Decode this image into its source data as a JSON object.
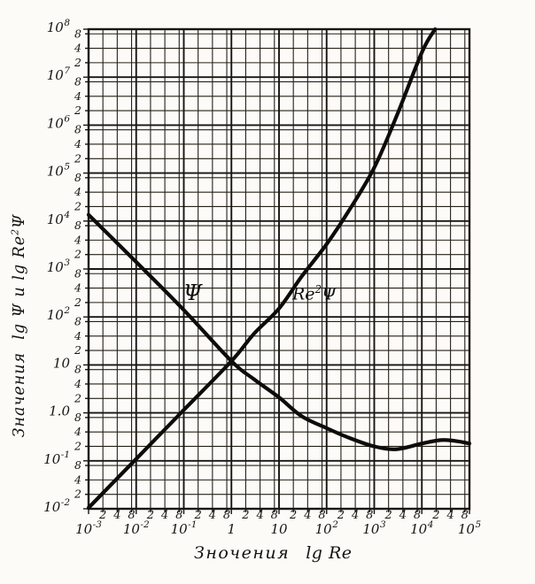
{
  "chart_data": {
    "type": "line",
    "scale": "log-log",
    "title": "",
    "x_title": {
      "word": "Зночения",
      "formula": "lg Re"
    },
    "y_title": {
      "word": "Значения",
      "f1": "lg Ψ и lg Re",
      "sup": "2",
      "f2": "Ψ"
    },
    "x_range": [
      0.001,
      100000
    ],
    "y_range": [
      0.01,
      100000000
    ],
    "grid": {
      "major": true,
      "minor": true
    },
    "minor_multipliers": [
      2,
      4,
      8
    ],
    "minor_labels": [
      "2",
      "4",
      "8"
    ],
    "x_ticks": [
      {
        "text": "10",
        "sup": "-3",
        "value": 0.001
      },
      {
        "text": "10",
        "sup": "-2",
        "value": 0.01
      },
      {
        "text": "10",
        "sup": "-1",
        "value": 0.1
      },
      {
        "text": "1",
        "sup": "",
        "value": 1
      },
      {
        "text": "10",
        "sup": "",
        "value": 10
      },
      {
        "text": "10",
        "sup": "2",
        "value": 100
      },
      {
        "text": "10",
        "sup": "3",
        "value": 1000
      },
      {
        "text": "10",
        "sup": "4",
        "value": 10000
      },
      {
        "text": "10",
        "sup": "5",
        "value": 100000
      }
    ],
    "y_ticks": [
      {
        "text": "10",
        "sup": "8",
        "value": 100000000.0
      },
      {
        "text": "10",
        "sup": "7",
        "value": 10000000.0
      },
      {
        "text": "10",
        "sup": "6",
        "value": 1000000.0
      },
      {
        "text": "10",
        "sup": "5",
        "value": 100000.0
      },
      {
        "text": "10",
        "sup": "4",
        "value": 10000.0
      },
      {
        "text": "10",
        "sup": "3",
        "value": 1000.0
      },
      {
        "text": "10",
        "sup": "2",
        "value": 100.0
      },
      {
        "text": "10",
        "sup": "",
        "value": 10
      },
      {
        "text": "1.0",
        "sup": "",
        "value": 1
      },
      {
        "text": "10",
        "sup": "-1",
        "value": 0.1
      },
      {
        "text": "10",
        "sup": "-2",
        "value": 0.01
      }
    ],
    "series": [
      {
        "id": "psi",
        "name": "Ψ",
        "label_text": "Ψ",
        "points": [
          [
            0.001,
            13500
          ],
          [
            0.01,
            1400
          ],
          [
            0.1,
            140
          ],
          [
            1,
            12
          ],
          [
            3,
            5
          ],
          [
            10,
            2.1
          ],
          [
            30,
            0.85
          ],
          [
            100,
            0.48
          ],
          [
            300,
            0.3
          ],
          [
            1000,
            0.2
          ],
          [
            3000,
            0.175
          ],
          [
            10000,
            0.23
          ],
          [
            25000,
            0.27
          ],
          [
            50000,
            0.26
          ],
          [
            100000,
            0.23
          ]
        ]
      },
      {
        "id": "re2psi",
        "name": "Re²Ψ",
        "label_main": "Re",
        "label_sup": "2",
        "label_tail": "Ψ",
        "points": [
          [
            0.001,
            0.0105
          ],
          [
            0.01,
            0.11
          ],
          [
            0.1,
            1.15
          ],
          [
            1,
            12
          ],
          [
            3,
            45
          ],
          [
            10,
            150
          ],
          [
            30,
            700
          ],
          [
            100,
            3300
          ],
          [
            300,
            17000
          ],
          [
            1000,
            130000
          ],
          [
            3000,
            1600000
          ],
          [
            10000,
            33000000
          ],
          [
            19000,
            100000000
          ]
        ]
      }
    ],
    "colors": {
      "paper": "#fcfbf8",
      "ink": "#181512",
      "minor_grid": "#242018",
      "curve": "#0d0c0a"
    }
  }
}
